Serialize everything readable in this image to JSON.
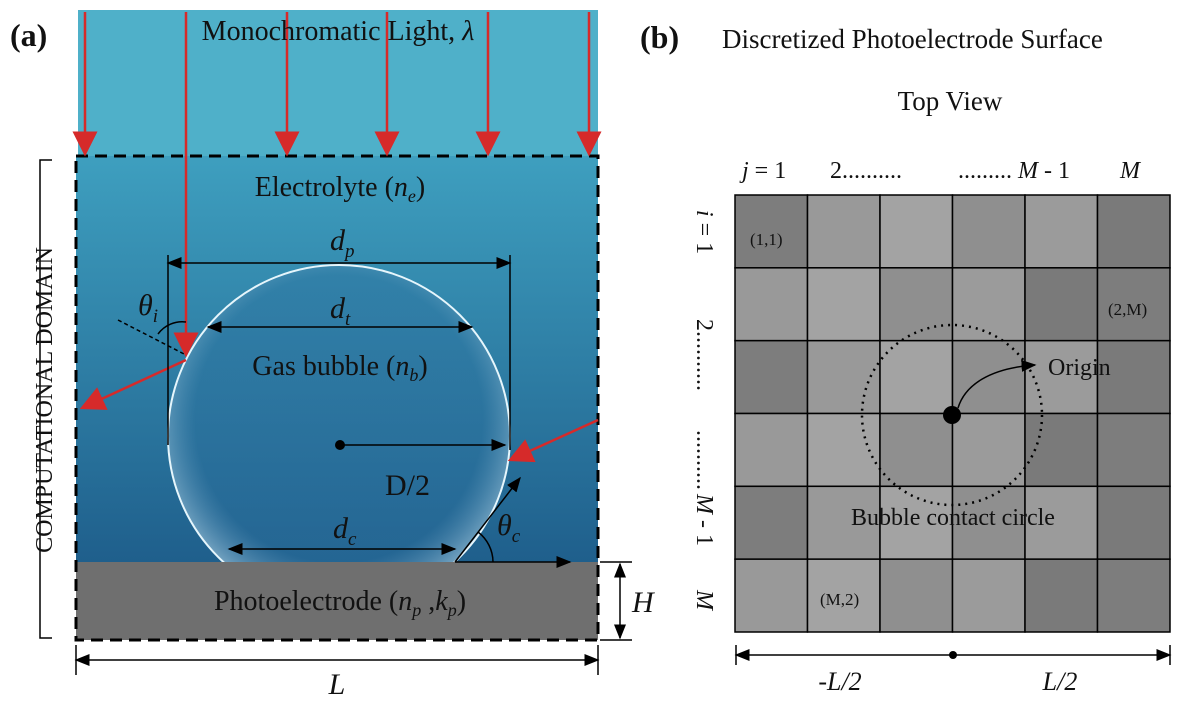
{
  "panel_a": {
    "label": "(a)",
    "light": {
      "text": "Monochromatic Light, ",
      "symbol": "λ"
    },
    "electrolyte": {
      "text": "Electrolyte (",
      "symbol": "n",
      "sub": "e",
      "close": ")"
    },
    "dp": {
      "symbol": "d",
      "sub": "p"
    },
    "dt": {
      "symbol": "d",
      "sub": "t"
    },
    "theta_i": {
      "symbol": "θ",
      "sub": "i"
    },
    "bubble": {
      "text": "Gas bubble (",
      "symbol": "n",
      "sub": "b",
      "close": ")"
    },
    "radius": "D/2",
    "dc": {
      "symbol": "d",
      "sub": "c"
    },
    "theta_c": {
      "symbol": "θ",
      "sub": "c"
    },
    "electrode": {
      "text": "Photoelectrode (",
      "symbol1": "n",
      "sub1": "p",
      "comma": " ,",
      "symbol2": "k",
      "sub2": "p",
      "close": ")"
    },
    "height": "H",
    "length": "L",
    "domain": "COMPUTATIONAL DOMAIN"
  },
  "panel_b": {
    "label": "(b)",
    "title": "Discretized Photoelectrode Surface",
    "subtitle": "Top View",
    "columns": {
      "first_symbol": "j",
      "first_rest": " = 1",
      "second": "2..........",
      "third_dots": "......... ",
      "third_symbol": "M",
      "third_rest": " - 1",
      "last": "M"
    },
    "rows": {
      "first_symbol": "i",
      "first_rest": " = 1",
      "second": "2..........",
      "third": "..........",
      "fourth_symbol": "M",
      "fourth_rest": " - 1",
      "last": "M"
    },
    "cells": [
      "(1,1)",
      "(2,M)",
      "(M,2)"
    ],
    "origin": "Origin",
    "circle": "Bubble contact circle",
    "left": "-L/2",
    "right": "L/2"
  }
}
